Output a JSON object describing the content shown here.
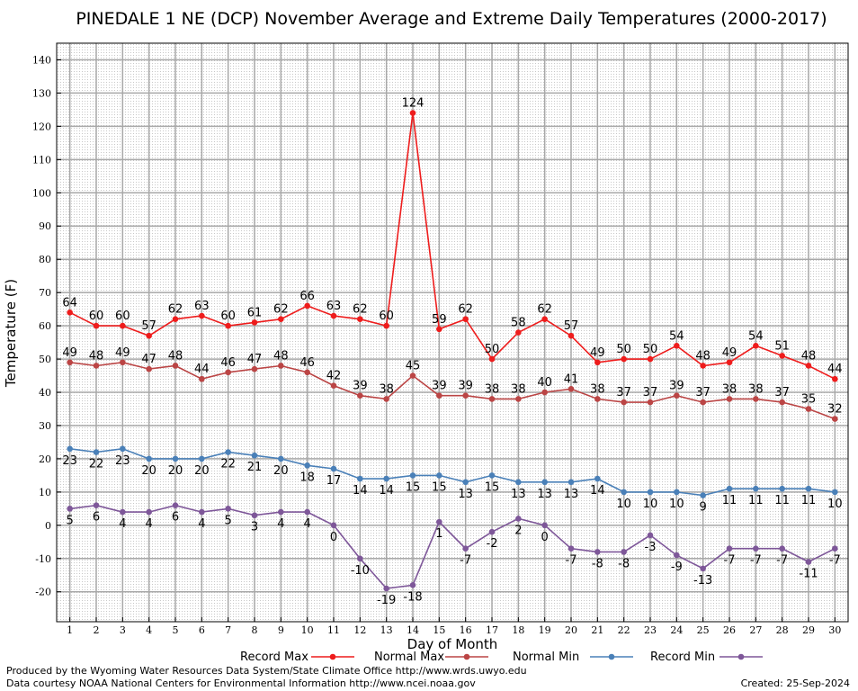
{
  "chart_data": {
    "type": "line",
    "title": "PINEDALE 1 NE (DCP) November Average and Extreme Daily Temperatures (2000-2017)",
    "xlabel": "Day of Month",
    "ylabel": "Temperature (F)",
    "xlim": [
      0.5,
      30.5
    ],
    "ylim": [
      -29,
      145
    ],
    "grid": true,
    "x": [
      1,
      2,
      3,
      4,
      5,
      6,
      7,
      8,
      9,
      10,
      11,
      12,
      13,
      14,
      15,
      16,
      17,
      18,
      19,
      20,
      21,
      22,
      23,
      24,
      25,
      26,
      27,
      28,
      29,
      30
    ],
    "x_tick_labels": [
      "1",
      "2",
      "3",
      "4",
      "5",
      "6",
      "7",
      "8",
      "9",
      "10",
      "11",
      "12",
      "13",
      "14",
      "15",
      "16",
      "17",
      "18",
      "19",
      "20",
      "21",
      "22",
      "23",
      "24",
      "25",
      "26",
      "27",
      "28",
      "29",
      "30"
    ],
    "y_ticks": [
      -20,
      -10,
      0,
      10,
      20,
      30,
      40,
      50,
      60,
      70,
      80,
      90,
      100,
      110,
      120,
      130,
      140
    ],
    "y_tick_labels": [
      "-20",
      "-10",
      "0",
      "10",
      "20",
      "30",
      "40",
      "50",
      "60",
      "70",
      "80",
      "90",
      "100",
      "110",
      "120",
      "130",
      "140"
    ],
    "series": [
      {
        "name": "Record Max",
        "color": "#ee1c1c",
        "label_position": "above",
        "values": [
          64,
          60,
          60,
          57,
          62,
          63,
          60,
          61,
          62,
          66,
          63,
          62,
          60,
          124,
          59,
          62,
          50,
          58,
          62,
          57,
          49,
          50,
          50,
          54,
          48,
          49,
          54,
          51,
          48,
          44
        ]
      },
      {
        "name": "Normal Max",
        "color": "#bb4545",
        "label_position": "above",
        "values": [
          49,
          48,
          49,
          47,
          48,
          44,
          46,
          47,
          48,
          46,
          42,
          39,
          38,
          45,
          39,
          39,
          38,
          38,
          40,
          41,
          38,
          37,
          37,
          39,
          37,
          38,
          38,
          37,
          35,
          32
        ]
      },
      {
        "name": "Normal Min",
        "color": "#4a80b8",
        "label_position": "below",
        "values": [
          23,
          22,
          23,
          20,
          20,
          20,
          22,
          21,
          20,
          18,
          17,
          14,
          14,
          15,
          15,
          13,
          15,
          13,
          13,
          13,
          14,
          10,
          10,
          10,
          9,
          11,
          11,
          11,
          11,
          10
        ]
      },
      {
        "name": "Record Min",
        "color": "#7e5799",
        "label_position": "below",
        "values": [
          5,
          6,
          4,
          4,
          6,
          4,
          5,
          3,
          4,
          4,
          0,
          -10,
          -19,
          -18,
          1,
          -7,
          -2,
          2,
          0,
          -7,
          -8,
          -8,
          -3,
          -9,
          -13,
          -7,
          -7,
          -7,
          -11,
          -7
        ]
      }
    ]
  },
  "footer": {
    "producer": "Produced by the Wyoming Water Resources Data System/State Climate Office http://www.wrds.uwyo.edu",
    "courtesy": "Data courtesy NOAA National Centers for Environmental Information http://www.ncei.noaa.gov",
    "created": "Created: 25-Sep-2024"
  }
}
